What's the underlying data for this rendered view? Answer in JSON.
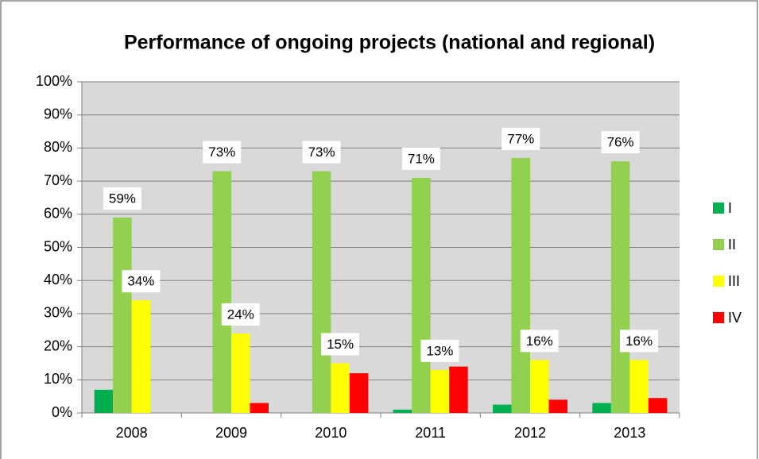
{
  "chart_data": {
    "type": "bar",
    "title": "Performance of ongoing projects (national and regional)",
    "categories": [
      "2008",
      "2009",
      "2010",
      "2011",
      "2012",
      "2013"
    ],
    "series": [
      {
        "name": "I",
        "color": "#00b050",
        "values": [
          7,
          0,
          0,
          1,
          2.5,
          3
        ]
      },
      {
        "name": "II",
        "color": "#92d050",
        "values": [
          59,
          73,
          73,
          71,
          77,
          76
        ],
        "value_labels": [
          "59%",
          "73%",
          "73%",
          "71%",
          "77%",
          "76%"
        ]
      },
      {
        "name": "III",
        "color": "#ffff00",
        "values": [
          34,
          24,
          15,
          13,
          16,
          16
        ],
        "value_labels": [
          "34%",
          "24%",
          "15%",
          "13%",
          "16%",
          "16%"
        ]
      },
      {
        "name": "IV",
        "color": "#ff0000",
        "values": [
          0,
          3,
          12,
          14,
          4,
          4.5
        ]
      }
    ],
    "ylim": [
      0,
      100
    ],
    "yticks": [
      {
        "value": 0,
        "label": "0%"
      },
      {
        "value": 10,
        "label": "10%"
      },
      {
        "value": 20,
        "label": "20%"
      },
      {
        "value": 30,
        "label": "30%"
      },
      {
        "value": 40,
        "label": "40%"
      },
      {
        "value": 50,
        "label": "50%"
      },
      {
        "value": 60,
        "label": "60%"
      },
      {
        "value": 70,
        "label": "70%"
      },
      {
        "value": 80,
        "label": "80%"
      },
      {
        "value": 90,
        "label": "90%"
      },
      {
        "value": 100,
        "label": "100%"
      }
    ],
    "grid": true,
    "legend": "right"
  }
}
